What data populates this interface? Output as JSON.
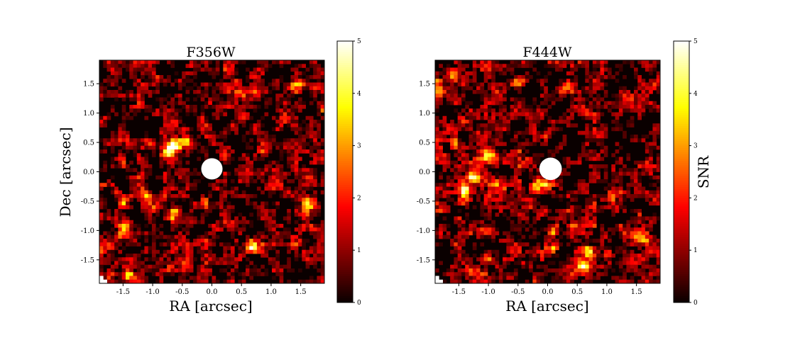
{
  "chart_data": [
    {
      "type": "heatmap",
      "title": "F356W",
      "xlabel": "RA [arcsec]",
      "ylabel": "Dec [arcsec]",
      "xlim": [
        -1.9,
        1.9
      ],
      "ylim": [
        -1.9,
        1.9
      ],
      "xticks": [
        "-1.5",
        "-1.0",
        "-0.5",
        "0.0",
        "0.5",
        "1.0",
        "1.5"
      ],
      "yticks": [
        "-1.5",
        "-1.0",
        "-0.5",
        "0.0",
        "0.5",
        "1.0",
        "1.5"
      ],
      "colormap": "hot",
      "masked_center": {
        "ra": 0.0,
        "dec": 0.05,
        "radius": 0.18
      },
      "features": [
        {
          "ra": -0.65,
          "dec": 0.45,
          "snr": 4.6
        },
        {
          "ra": -0.45,
          "dec": 0.5,
          "snr": 4.3
        },
        {
          "ra": -0.75,
          "dec": 0.3,
          "snr": 3.5
        },
        {
          "ra": -1.5,
          "dec": -0.55,
          "snr": 3.0
        },
        {
          "ra": -1.5,
          "dec": -1.0,
          "snr": 3.0
        },
        {
          "ra": -1.1,
          "dec": -0.4,
          "snr": 2.7
        },
        {
          "ra": 1.6,
          "dec": -0.55,
          "snr": 3.8
        },
        {
          "ra": 0.5,
          "dec": 1.35,
          "snr": 3.0
        },
        {
          "ra": 1.45,
          "dec": 1.5,
          "snr": 2.8
        },
        {
          "ra": 0.7,
          "dec": -1.3,
          "snr": 2.8
        },
        {
          "ra": -0.6,
          "dec": -0.7,
          "snr": 2.3
        },
        {
          "ra": -1.4,
          "dec": -1.75,
          "snr": 2.5
        }
      ]
    },
    {
      "type": "heatmap",
      "title": "F444W",
      "xlabel": "RA [arcsec]",
      "ylabel": "",
      "xlim": [
        -1.9,
        1.9
      ],
      "ylim": [
        -1.9,
        1.9
      ],
      "xticks": [
        "-1.5",
        "-1.0",
        "-0.5",
        "0.0",
        "0.5",
        "1.0",
        "1.5"
      ],
      "yticks": [
        "-1.5",
        "-1.0",
        "-0.5",
        "0.0",
        "0.5",
        "1.0",
        "1.5"
      ],
      "colormap": "hot",
      "masked_center": {
        "ra": 0.05,
        "dec": 0.05,
        "radius": 0.19
      },
      "features": [
        {
          "ra": -1.25,
          "dec": -0.1,
          "snr": 4.0
        },
        {
          "ra": -1.4,
          "dec": -0.3,
          "snr": 3.6
        },
        {
          "ra": -0.2,
          "dec": -0.25,
          "snr": 3.4
        },
        {
          "ra": 0.0,
          "dec": -0.2,
          "snr": 3.2
        },
        {
          "ra": -0.5,
          "dec": 1.5,
          "snr": 3.0
        },
        {
          "ra": 0.4,
          "dec": 1.45,
          "snr": 3.2
        },
        {
          "ra": 0.1,
          "dec": -1.0,
          "snr": 3.0
        },
        {
          "ra": 0.6,
          "dec": -1.6,
          "snr": 4.2
        },
        {
          "ra": 0.7,
          "dec": -1.35,
          "snr": 2.8
        },
        {
          "ra": 1.6,
          "dec": -1.15,
          "snr": 3.0
        },
        {
          "ra": -0.95,
          "dec": 0.3,
          "snr": 2.6
        },
        {
          "ra": -1.55,
          "dec": 0.45,
          "snr": 2.3
        }
      ]
    }
  ],
  "colorbar": {
    "label": "SNR",
    "range": [
      0,
      5
    ],
    "ticks": [
      "0",
      "1",
      "2",
      "3",
      "4",
      "5"
    ]
  }
}
